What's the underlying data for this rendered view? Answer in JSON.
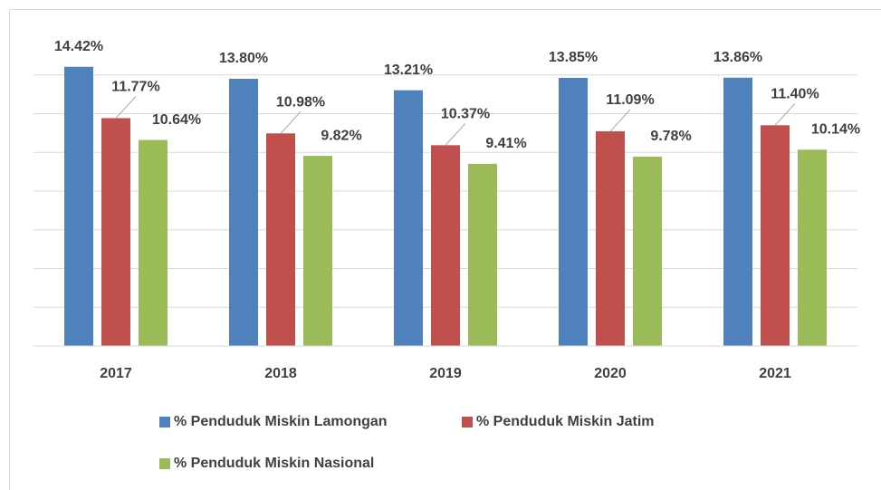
{
  "chart_data": {
    "type": "bar",
    "categories": [
      "2017",
      "2018",
      "2019",
      "2020",
      "2021"
    ],
    "series": [
      {
        "name": "% Penduduk Miskin Lamongan",
        "color": "#4f81bd",
        "values": [
          14.42,
          13.8,
          13.21,
          13.85,
          13.86
        ],
        "value_labels": [
          "14.42%",
          "13.80%",
          "13.21%",
          "13.85%",
          "13.86%"
        ]
      },
      {
        "name": "% Penduduk Miskin Jatim",
        "color": "#c0504d",
        "values": [
          11.77,
          10.98,
          10.37,
          11.09,
          11.4
        ],
        "value_labels": [
          "11.77%",
          "10.98%",
          "10.37%",
          "11.09%",
          "11.40%"
        ]
      },
      {
        "name": "% Penduduk Miskin Nasional",
        "color": "#9bbb59",
        "values": [
          10.64,
          9.82,
          9.41,
          9.78,
          10.14
        ],
        "value_labels": [
          "10.64%",
          "9.82%",
          "9.41%",
          "9.78%",
          "10.14%"
        ]
      }
    ],
    "ylim": [
      0,
      16
    ],
    "yticks": [
      0,
      2,
      4,
      6,
      8,
      10,
      12,
      14
    ],
    "grid": true
  }
}
